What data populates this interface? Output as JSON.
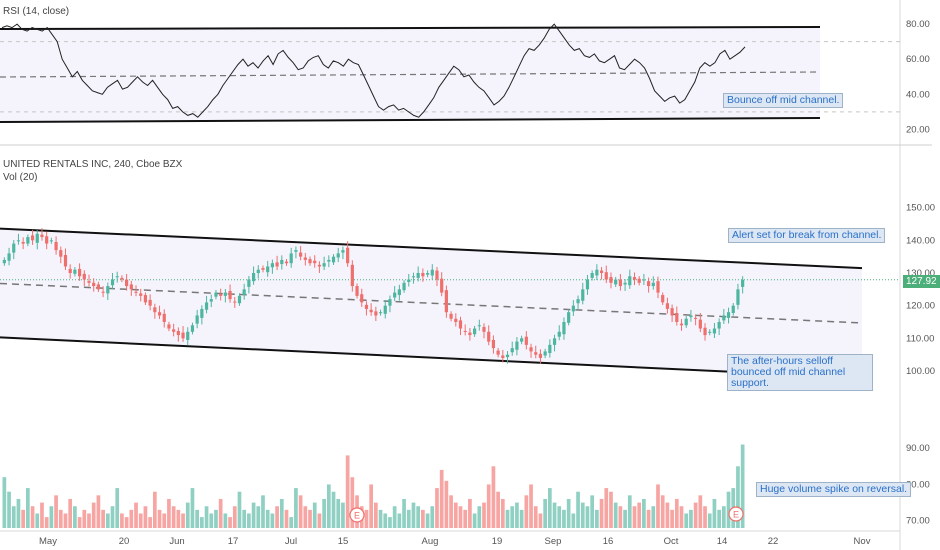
{
  "rsi_panel": {
    "title": "RSI (14, close)",
    "annotation": "Bounce off mid channel."
  },
  "price_panel": {
    "title": "UNITED RENTALS INC, 240, Cboe BZX",
    "volume_label": "Vol (20)",
    "last_price": "127.92",
    "annotations": {
      "alert": "Alert set for break from channel.",
      "selloff": "The after-hours selloff bounced off mid channel support.",
      "volume": "Huge volume spike on reversal."
    }
  },
  "colors": {
    "up": "#4db6a0",
    "down": "#ef6f6c",
    "vol_up": "#8fd0c3",
    "vol_down": "#f6a5a3",
    "channel_bg": "#f5f3fc",
    "accent": "#2a6fc9"
  },
  "chart_data": [
    {
      "type": "line",
      "title": "RSI (14, close)",
      "ylim": [
        14,
        88
      ],
      "y_ticks": [
        "80.00",
        "60.00",
        "40.00",
        "20.00"
      ],
      "levels": [
        70,
        50,
        30
      ],
      "values": [
        78,
        79,
        78,
        80,
        77,
        76,
        78,
        77,
        76,
        78,
        74,
        70,
        60,
        55,
        50,
        53,
        48,
        45,
        42,
        41,
        40,
        44,
        46,
        48,
        43,
        44,
        47,
        50,
        47,
        45,
        48,
        44,
        40,
        37,
        32,
        33,
        30,
        28,
        29,
        27,
        30,
        33,
        37,
        40,
        45,
        49,
        53,
        57,
        60,
        56,
        58,
        55,
        59,
        62,
        57,
        63,
        65,
        61,
        58,
        54,
        55,
        59,
        61,
        62,
        57,
        55,
        59,
        58,
        56,
        60,
        58,
        57,
        51,
        45,
        39,
        33,
        31,
        33,
        34,
        31,
        32,
        30,
        28,
        27,
        30,
        34,
        38,
        44,
        48,
        52,
        56,
        54,
        50,
        51,
        47,
        44,
        42,
        38,
        34,
        36,
        39,
        44,
        50,
        56,
        62,
        66,
        65,
        68,
        72,
        77,
        80,
        76,
        72,
        68,
        65,
        66,
        62,
        61,
        63,
        59,
        58,
        60,
        62,
        55,
        54,
        57,
        60,
        58,
        55,
        49,
        42,
        39,
        36,
        38,
        39,
        35,
        37,
        42,
        47,
        55,
        58,
        56,
        58,
        63,
        65,
        60,
        62,
        64,
        67
      ]
    },
    {
      "type": "candlestick",
      "title": "UNITED RENTALS INC, 240, Cboe BZX",
      "ylim": [
        85,
        160
      ],
      "y_ticks": [
        "150.00",
        "140.00",
        "130.00",
        "120.00",
        "110.00",
        "100.00"
      ],
      "x_ticks": [
        "May",
        "20",
        "Jun",
        "17",
        "Jul",
        "15",
        "Aug",
        "19",
        "Sep",
        "16",
        "Oct",
        "14",
        "22",
        "Nov"
      ],
      "closes": [
        134,
        136,
        139,
        140,
        139,
        141,
        140,
        142,
        141,
        139,
        140,
        137,
        135,
        132,
        130,
        131,
        129,
        128,
        127,
        126,
        125,
        124,
        126,
        128,
        129,
        128,
        126,
        125,
        124,
        123,
        121,
        120,
        118,
        117,
        115,
        113,
        112,
        111,
        110,
        112,
        114,
        117,
        119,
        121,
        122,
        124,
        123,
        124,
        122,
        121,
        123,
        125,
        128,
        130,
        131,
        131,
        132,
        133,
        132,
        134,
        133,
        136,
        137,
        135,
        134,
        133,
        133,
        132,
        133,
        134,
        135,
        136,
        137,
        133,
        126,
        123,
        121,
        119,
        118,
        117,
        118,
        120,
        122,
        124,
        125,
        127,
        128,
        129,
        130,
        129,
        130,
        131,
        128,
        124,
        118,
        116,
        115,
        113,
        112,
        111,
        113,
        114,
        112,
        109,
        107,
        105,
        104,
        105,
        107,
        109,
        110,
        108,
        106,
        105,
        104,
        106,
        108,
        110,
        112,
        115,
        118,
        120,
        122,
        125,
        128,
        130,
        131,
        130,
        128,
        127,
        128,
        126,
        127,
        129,
        128,
        127,
        128,
        126,
        127,
        124,
        121,
        119,
        117,
        115,
        114,
        116,
        117,
        116,
        113,
        111,
        112,
        113,
        115,
        117,
        118,
        120,
        125,
        127.92
      ],
      "channel": {
        "upper": [
          143.6,
          131.5
        ],
        "mid": [
          126.8,
          114.7
        ],
        "lower": [
          110.3,
          97.9
        ]
      },
      "last_price": 127.92
    },
    {
      "type": "bar",
      "title": "Vol (20)",
      "ylim": [
        68,
        95
      ],
      "y_ticks": [
        "90.00",
        "80.00",
        "70.00"
      ],
      "values": [
        82,
        78,
        74,
        76,
        73,
        79,
        74,
        72,
        75,
        71,
        74,
        77,
        73,
        72,
        76,
        74,
        71,
        73,
        72,
        75,
        77,
        73,
        72,
        74,
        79,
        72,
        71,
        73,
        75,
        72,
        74,
        71,
        78,
        73,
        72,
        76,
        74,
        73,
        72,
        75,
        79,
        73,
        71,
        74,
        72,
        73,
        76,
        72,
        71,
        74,
        78,
        73,
        72,
        75,
        74,
        77,
        73,
        72,
        74,
        76,
        73,
        71,
        79,
        77,
        74,
        73,
        75,
        72,
        76,
        80,
        78,
        76,
        75,
        88,
        82,
        77,
        74,
        73,
        80,
        75,
        73,
        72,
        71,
        74,
        72,
        76,
        73,
        75,
        74,
        73,
        72,
        74,
        79,
        84,
        81,
        77,
        75,
        74,
        73,
        76,
        72,
        74,
        75,
        80,
        85,
        78,
        76,
        73,
        74,
        75,
        73,
        77,
        80,
        74,
        72,
        76,
        79,
        75,
        74,
        73,
        76,
        72,
        78,
        75,
        74,
        77,
        73,
        76,
        79,
        78,
        75,
        74,
        73,
        77,
        74,
        75,
        76,
        73,
        74,
        80,
        77,
        75,
        73,
        76,
        74,
        72,
        73,
        75,
        77,
        74,
        72,
        76,
        73,
        74,
        78,
        79,
        85,
        91
      ],
      "x_labels": [
        "May",
        "20",
        "Jun",
        "17",
        "Jul",
        "15",
        "Aug",
        "19",
        "Sep",
        "16",
        "Oct",
        "14",
        "22",
        "Nov"
      ]
    }
  ]
}
